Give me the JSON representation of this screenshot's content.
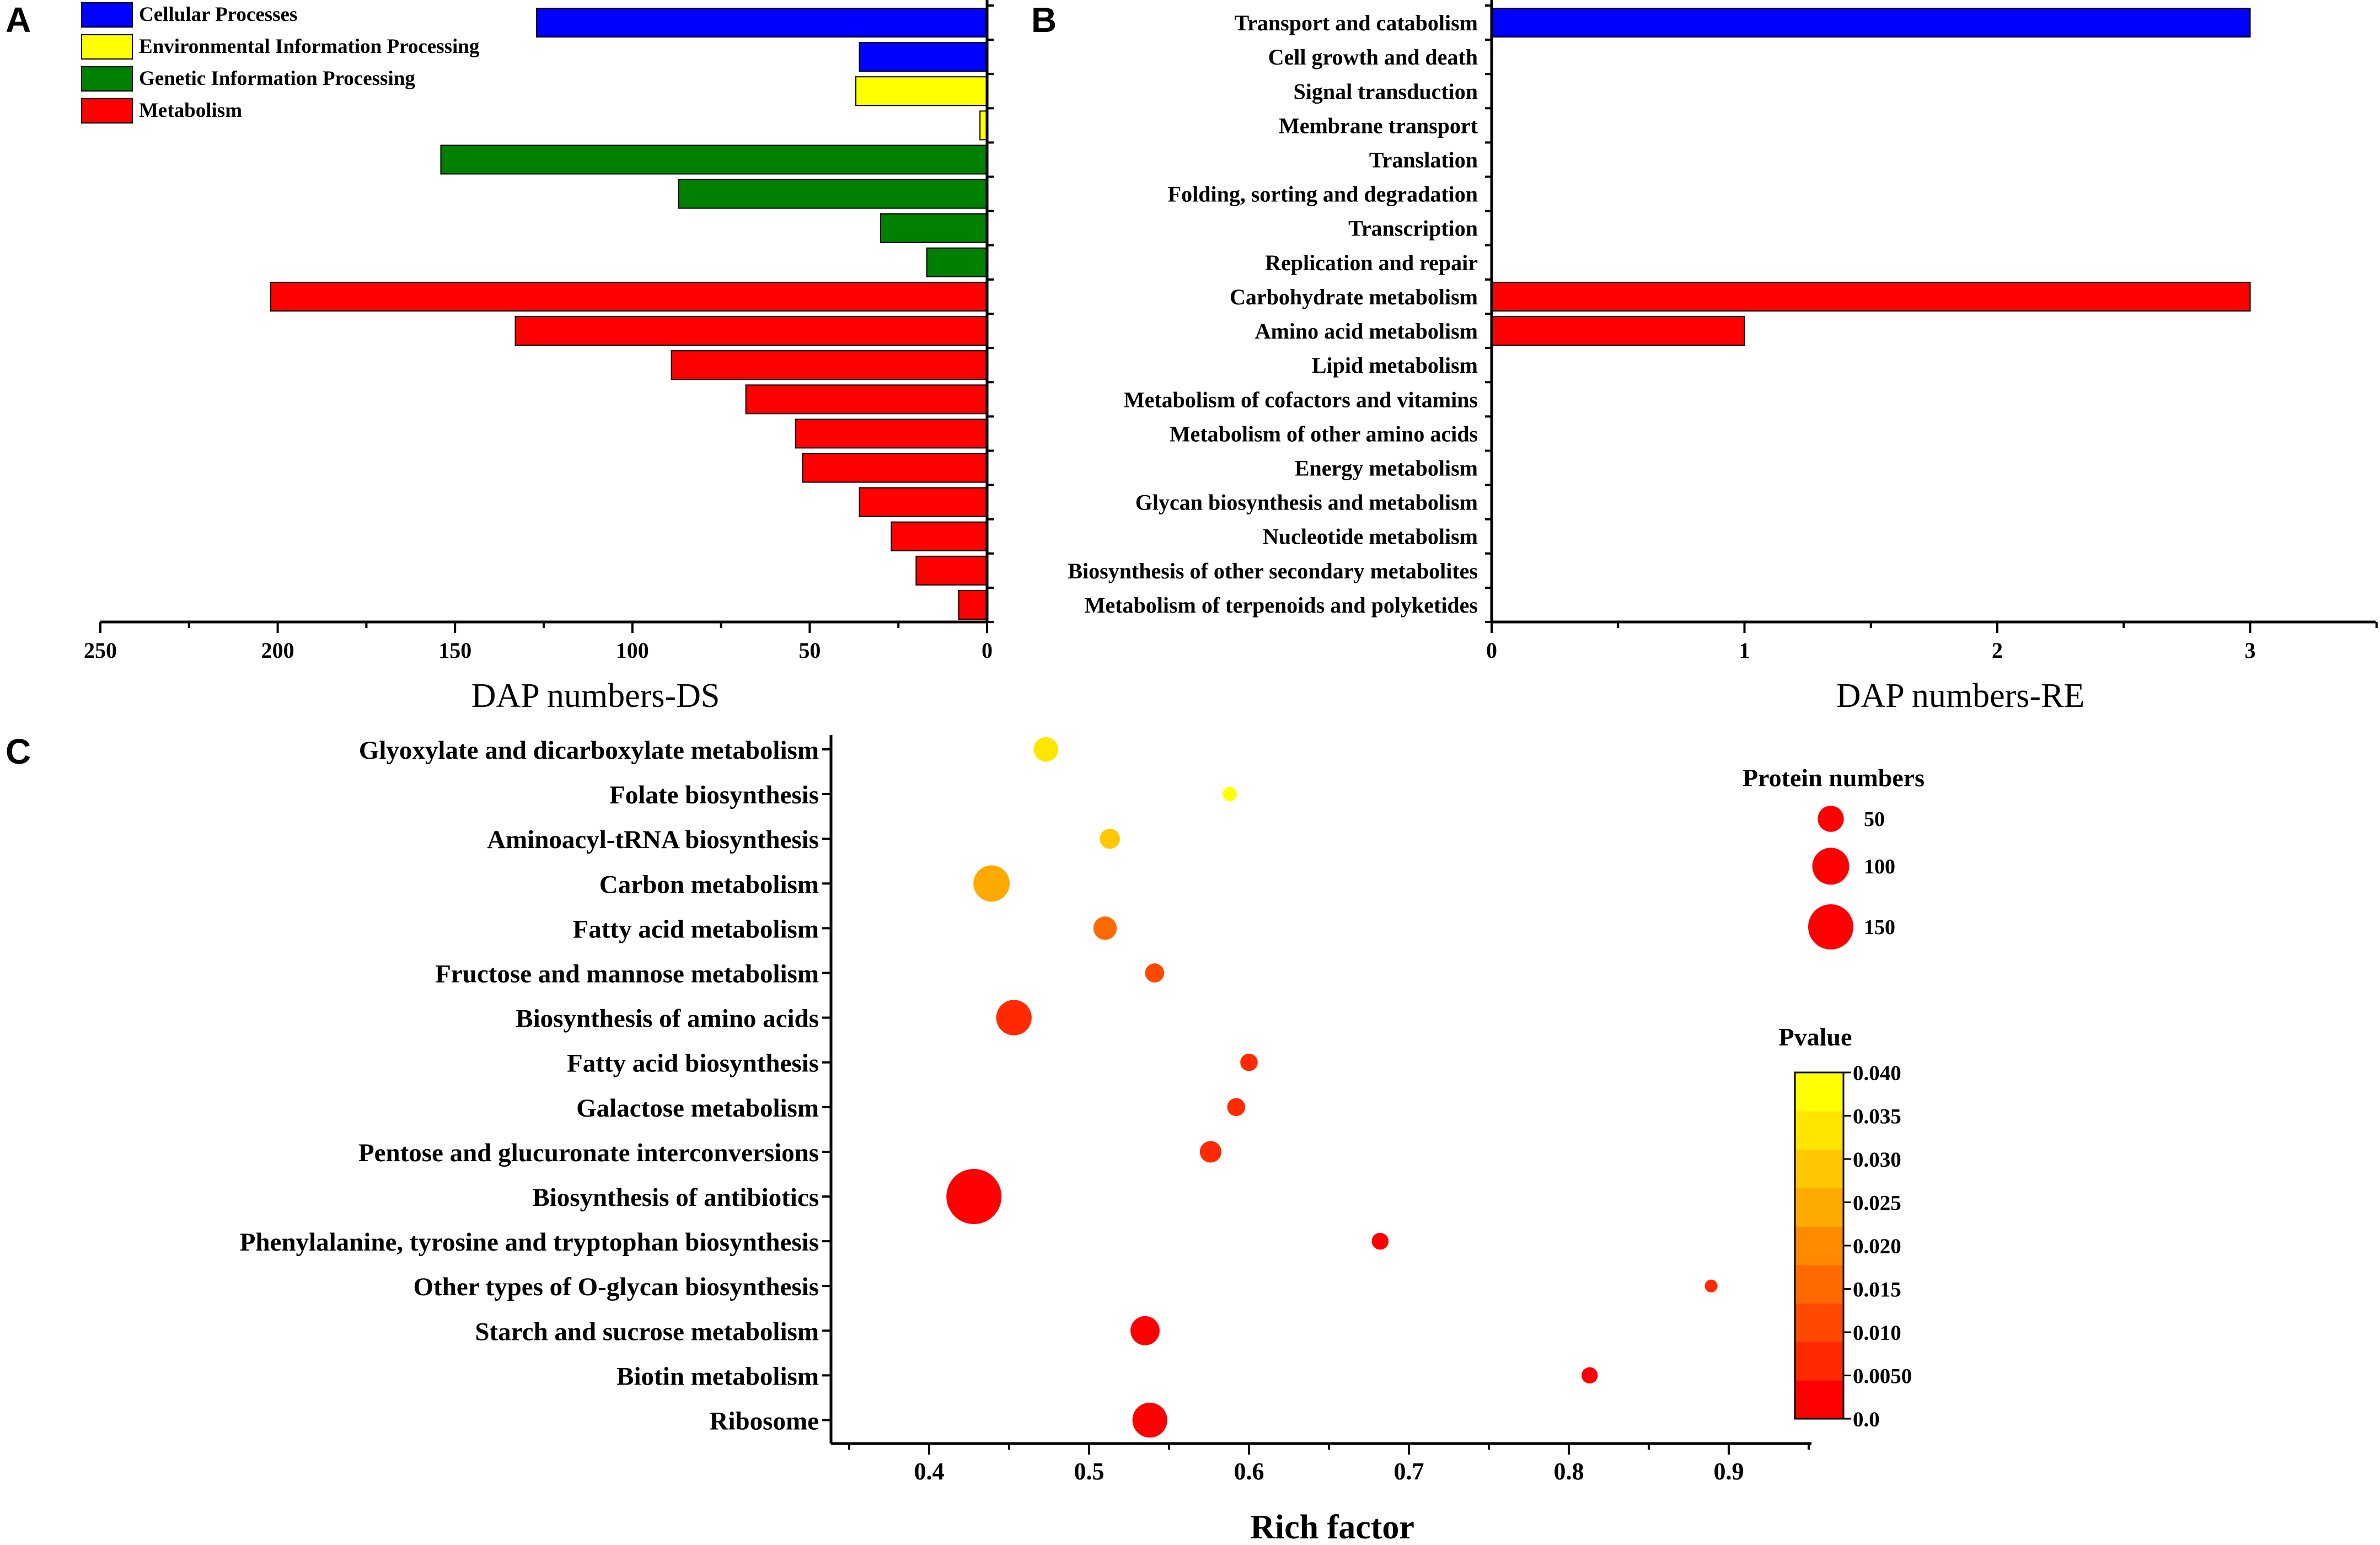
{
  "colors": {
    "Cellular Processes": "#0000ff",
    "Environmental Information Processing": "#ffff00",
    "Genetic Information Processing": "#008000",
    "Metabolism": "#ff0000",
    "axis": "#000000"
  },
  "chart_data": [
    {
      "panel": "A",
      "type": "bar",
      "orientation": "horizontal",
      "xlabel": "DAP numbers-DS",
      "xlim": [
        250,
        0
      ],
      "x_ticks": [
        "250",
        "200",
        "150",
        "100",
        "50",
        "0"
      ],
      "legend": {
        "placement": "top-left",
        "entries": [
          "Cellular Processes",
          "Environmental Information Processing",
          "Genetic Information Processing",
          "Metabolism"
        ]
      },
      "bars": [
        {
          "value": 127,
          "group": "Cellular Processes"
        },
        {
          "value": 36,
          "group": "Cellular Processes"
        },
        {
          "value": 37,
          "group": "Environmental Information Processing"
        },
        {
          "value": 2,
          "group": "Environmental Information Processing"
        },
        {
          "value": 154,
          "group": "Genetic Information Processing"
        },
        {
          "value": 87,
          "group": "Genetic Information Processing"
        },
        {
          "value": 30,
          "group": "Genetic Information Processing"
        },
        {
          "value": 17,
          "group": "Genetic Information Processing"
        },
        {
          "value": 202,
          "group": "Metabolism"
        },
        {
          "value": 133,
          "group": "Metabolism"
        },
        {
          "value": 89,
          "group": "Metabolism"
        },
        {
          "value": 68,
          "group": "Metabolism"
        },
        {
          "value": 54,
          "group": "Metabolism"
        },
        {
          "value": 52,
          "group": "Metabolism"
        },
        {
          "value": 36,
          "group": "Metabolism"
        },
        {
          "value": 27,
          "group": "Metabolism"
        },
        {
          "value": 20,
          "group": "Metabolism"
        },
        {
          "value": 8,
          "group": "Metabolism"
        }
      ]
    },
    {
      "panel": "B",
      "type": "bar",
      "orientation": "horizontal",
      "xlabel": "DAP numbers-RE",
      "xlim": [
        0,
        3.5
      ],
      "x_ticks": [
        "0",
        "1",
        "2",
        "3"
      ],
      "categories": [
        "Transport and catabolism",
        "Cell growth and death",
        "Signal transduction",
        "Membrane transport",
        "Translation",
        "Folding, sorting and degradation",
        "Transcription",
        "Replication and repair",
        "Carbohydrate metabolism",
        "Amino acid metabolism",
        "Lipid metabolism",
        "Metabolism of cofactors and vitamins",
        "Metabolism of other amino acids",
        "Energy metabolism",
        "Glycan biosynthesis and metabolism",
        "Nucleotide metabolism",
        "Biosynthesis of other secondary metabolites",
        "Metabolism of terpenoids and polyketides"
      ],
      "values": [
        3,
        0,
        0,
        0,
        0,
        0,
        0,
        0,
        3,
        1,
        0,
        0,
        0,
        0,
        0,
        0,
        0,
        0
      ],
      "groups": [
        "Cellular Processes",
        "Cellular Processes",
        "Environmental Information Processing",
        "Environmental Information Processing",
        "Genetic Information Processing",
        "Genetic Information Processing",
        "Genetic Information Processing",
        "Genetic Information Processing",
        "Metabolism",
        "Metabolism",
        "Metabolism",
        "Metabolism",
        "Metabolism",
        "Metabolism",
        "Metabolism",
        "Metabolism",
        "Metabolism",
        "Metabolism"
      ]
    },
    {
      "panel": "C",
      "type": "scatter",
      "xlabel": "Rich factor",
      "xlim": [
        0.35,
        0.96
      ],
      "x_ticks": [
        "0.4",
        "0.5",
        "0.6",
        "0.7",
        "0.8",
        "0.9"
      ],
      "categories": [
        "Glyoxylate and dicarboxylate metabolism",
        "Folate biosynthesis",
        "Aminoacyl-tRNA biosynthesis",
        "Carbon metabolism",
        "Fatty acid metabolism",
        "Fructose and mannose metabolism",
        "Biosynthesis of amino acids",
        "Fatty acid biosynthesis",
        "Galactose metabolism",
        "Pentose and glucuronate interconversions",
        "Biosynthesis of antibiotics",
        "Phenylalanine, tyrosine and tryptophan biosynthesis",
        "Other types of O-glycan biosynthesis",
        "Starch and sucrose metabolism",
        "Biotin metabolism",
        "Ribosome"
      ],
      "points": [
        {
          "rich_factor": 0.473,
          "count": 30,
          "pvalue": 0.037
        },
        {
          "rich_factor": 0.588,
          "count": 10,
          "pvalue": 0.04
        },
        {
          "rich_factor": 0.513,
          "count": 20,
          "pvalue": 0.03
        },
        {
          "rich_factor": 0.439,
          "count": 65,
          "pvalue": 0.025
        },
        {
          "rich_factor": 0.51,
          "count": 27,
          "pvalue": 0.015
        },
        {
          "rich_factor": 0.541,
          "count": 18,
          "pvalue": 0.012
        },
        {
          "rich_factor": 0.453,
          "count": 62,
          "pvalue": 0.007
        },
        {
          "rich_factor": 0.6,
          "count": 15,
          "pvalue": 0.004
        },
        {
          "rich_factor": 0.592,
          "count": 16,
          "pvalue": 0.004
        },
        {
          "rich_factor": 0.576,
          "count": 23,
          "pvalue": 0.005
        },
        {
          "rich_factor": 0.428,
          "count": 150,
          "pvalue": 0.001
        },
        {
          "rich_factor": 0.682,
          "count": 14,
          "pvalue": 0.002
        },
        {
          "rich_factor": 0.889,
          "count": 8,
          "pvalue": 0.005
        },
        {
          "rich_factor": 0.535,
          "count": 42,
          "pvalue": 0.002
        },
        {
          "rich_factor": 0.813,
          "count": 13,
          "pvalue": 0.001
        },
        {
          "rich_factor": 0.538,
          "count": 60,
          "pvalue": 0.0
        }
      ],
      "size_legend": {
        "title": "Protein numbers",
        "labels": [
          "50",
          "100",
          "150"
        ],
        "values": [
          50,
          100,
          150
        ]
      },
      "color_legend": {
        "title": "Pvalue",
        "labels": [
          "0.040",
          "0.035",
          "0.030",
          "0.025",
          "0.020",
          "0.015",
          "0.010",
          "0.0050",
          "0.0"
        ],
        "range": [
          0.0,
          0.04
        ],
        "colors": [
          "#ff0000",
          "#ff2a00",
          "#ff4800",
          "#ff6a00",
          "#ff8a00",
          "#ffaa00",
          "#ffc800",
          "#ffe600",
          "#ffff00"
        ]
      }
    }
  ]
}
